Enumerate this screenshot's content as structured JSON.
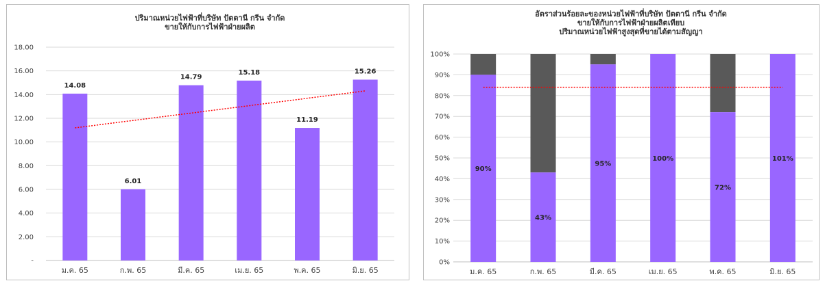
{
  "colors": {
    "bar": "#9966ff",
    "remainder": "#595959",
    "trend": "#ff0000",
    "grid": "#d9d9d9",
    "axis": "#bfbfbf"
  },
  "chart_data": [
    {
      "type": "bar",
      "title_lines": [
        "ปริมาณหน่วยไฟฟ้าที่บริษัท ปัตตานี กรีน จำกัด",
        "ขายให้กับการไฟฟ้าฝ่ายผลิต"
      ],
      "categories": [
        "ม.ค. 65",
        "ก.พ. 65",
        "มี.ค. 65",
        "เม.ย. 65",
        "พ.ค. 65",
        "มิ.ย. 65"
      ],
      "values": [
        14.08,
        6.01,
        14.79,
        15.18,
        11.19,
        15.26
      ],
      "data_labels": [
        "14.08",
        "6.01",
        "14.79",
        "15.18",
        "11.19",
        "15.26"
      ],
      "ylim": [
        0,
        18
      ],
      "y_ticks": [
        "-",
        "2.00",
        "4.00",
        "6.00",
        "8.00",
        "10.00",
        "12.00",
        "14.00",
        "16.00",
        "18.00"
      ],
      "grid": true,
      "trendline": "linear"
    },
    {
      "type": "bar",
      "stacked": true,
      "title_lines": [
        "อัตราส่วนร้อยละของหน่วยไฟฟ้าที่บริษัท ปัตตานี กรีน จำกัด",
        "ขายให้กับการไฟฟ้าฝ่ายผลิตเทียบ",
        "ปริมาณหน่วยไฟฟ้าสูงสุดที่ขายได้ตามสัญญา"
      ],
      "categories": [
        "ม.ค. 65",
        "ก.พ. 65",
        "มี.ค. 65",
        "เม.ย. 65",
        "พ.ค. 65",
        "มิ.ย. 65"
      ],
      "values": [
        90,
        43,
        95,
        100,
        72,
        101
      ],
      "data_labels": [
        "90%",
        "43%",
        "95%",
        "100%",
        "72%",
        "101%"
      ],
      "ylim": [
        0,
        100
      ],
      "y_ticks": [
        "0%",
        "10%",
        "20%",
        "30%",
        "40%",
        "50%",
        "60%",
        "70%",
        "80%",
        "90%",
        "100%"
      ],
      "grid": true,
      "average_line": 84
    }
  ]
}
